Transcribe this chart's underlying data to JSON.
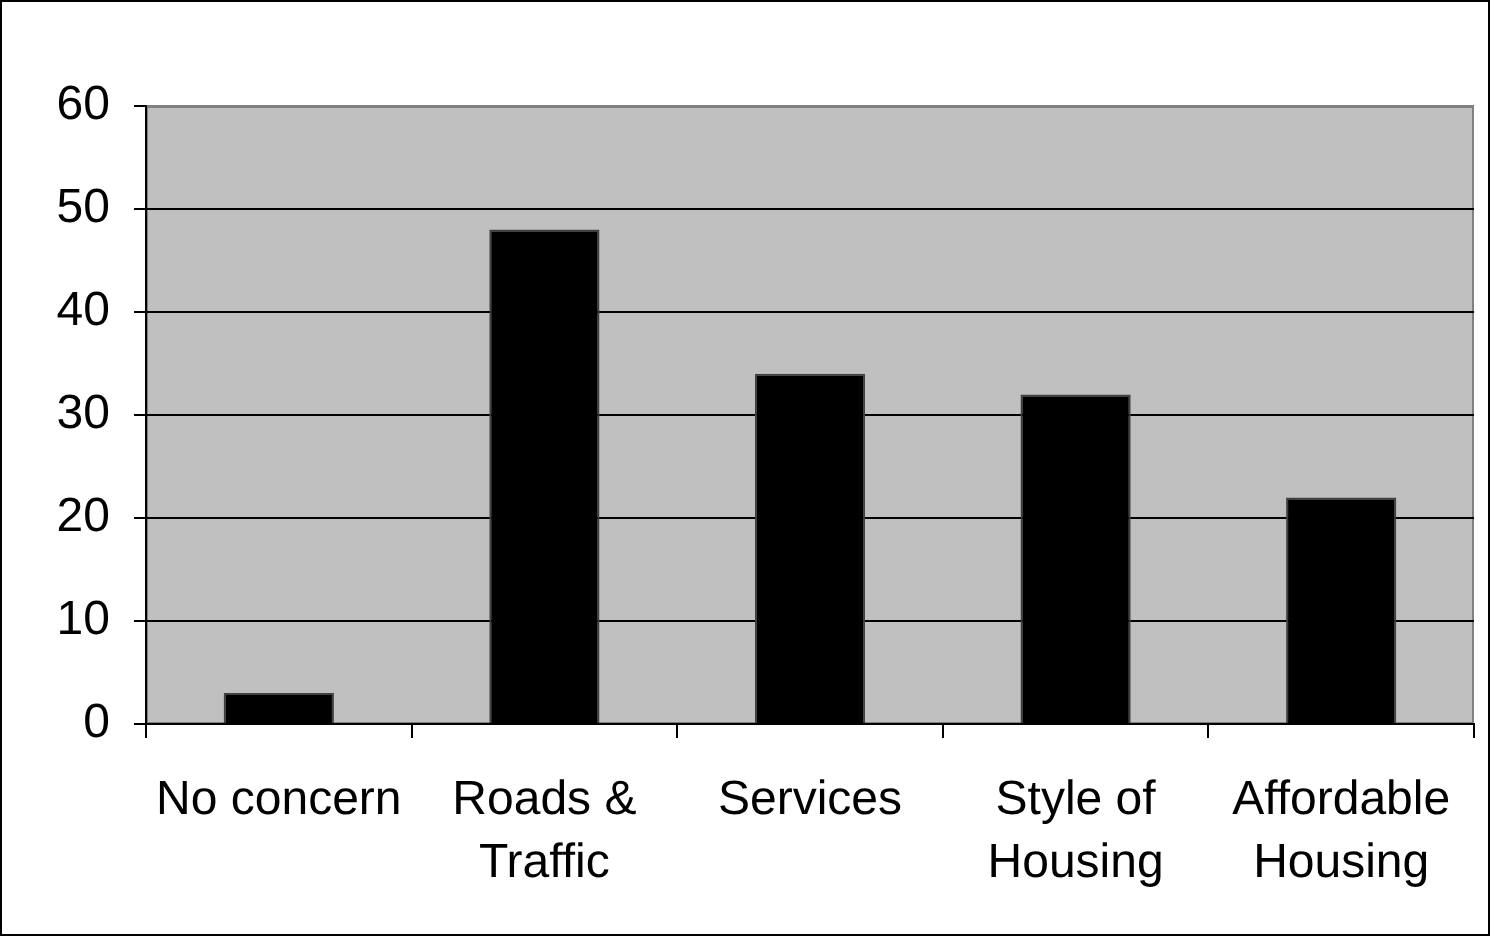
{
  "chart_data": {
    "type": "bar",
    "categories": [
      "No concern",
      "Roads & Traffic",
      "Services",
      "Style of Housing",
      "Affordable Housing"
    ],
    "values": [
      3,
      48,
      34,
      32,
      22
    ],
    "color": "#000000",
    "ylim": [
      0,
      60
    ],
    "yticks": [
      0,
      10,
      20,
      30,
      40,
      50,
      60
    ],
    "grid": "y"
  }
}
